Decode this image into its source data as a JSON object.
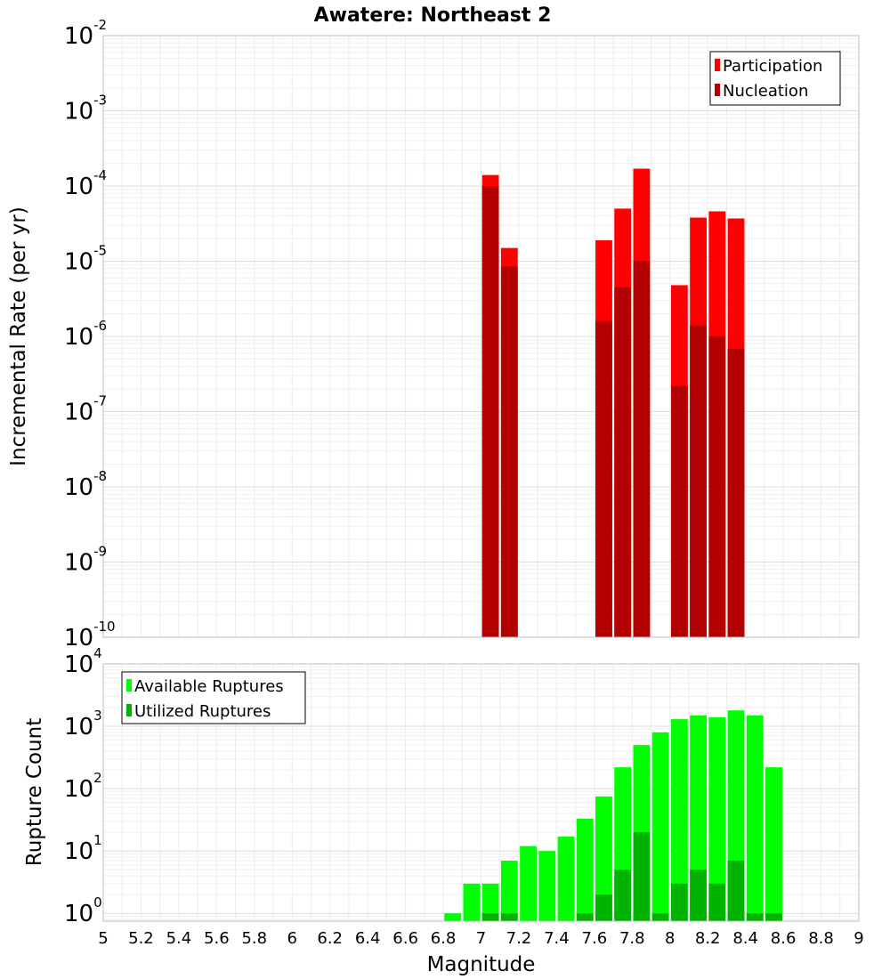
{
  "chart_data": [
    {
      "type": "bar",
      "title": "Awatere: Northeast 2",
      "xlabel": "",
      "ylabel": "Incremental Rate (per yr)",
      "yscale": "log",
      "xlim": [
        5,
        9
      ],
      "ylim": [
        1e-10,
        0.01
      ],
      "y_ticks": [
        {
          "base": "10",
          "exp": "-10"
        },
        {
          "base": "10",
          "exp": "-9"
        },
        {
          "base": "10",
          "exp": "-8"
        },
        {
          "base": "10",
          "exp": "-7"
        },
        {
          "base": "10",
          "exp": "-6"
        },
        {
          "base": "10",
          "exp": "-5"
        },
        {
          "base": "10",
          "exp": "-4"
        },
        {
          "base": "10",
          "exp": "-3"
        },
        {
          "base": "10",
          "exp": "-2"
        }
      ],
      "grid": true,
      "legend_position": "top-right",
      "bar_width": 0.1,
      "x": [
        7.05,
        7.15,
        7.65,
        7.75,
        7.85,
        8.05,
        8.15,
        8.25,
        8.35
      ],
      "series": [
        {
          "name": "Participation",
          "color": "#ff0000",
          "values": [
            0.00014,
            1.5e-05,
            1.9e-05,
            5e-05,
            0.00017,
            4.8e-06,
            3.8e-05,
            4.6e-05,
            3.7e-05
          ]
        },
        {
          "name": "Nucleation",
          "color": "#b30000",
          "values": [
            0.0001,
            8.5e-06,
            1.6e-06,
            4.5e-06,
            1e-05,
            2.2e-07,
            1.4e-06,
            1e-06,
            6.8e-07
          ]
        }
      ]
    },
    {
      "type": "bar",
      "title": "",
      "xlabel": "Magnitude",
      "ylabel": "Rupture Count",
      "yscale": "log",
      "xlim": [
        5,
        9
      ],
      "ylim": [
        0.75,
        10000
      ],
      "y_ticks": [
        {
          "base": "10",
          "exp": "0"
        },
        {
          "base": "10",
          "exp": "1"
        },
        {
          "base": "10",
          "exp": "2"
        },
        {
          "base": "10",
          "exp": "3"
        },
        {
          "base": "10",
          "exp": "4"
        }
      ],
      "x_tick_labels": [
        "5",
        "5.2",
        "5.4",
        "5.6",
        "5.8",
        "6",
        "6.2",
        "6.4",
        "6.6",
        "6.8",
        "7",
        "7.2",
        "7.4",
        "7.6",
        "7.8",
        "8",
        "8.2",
        "8.4",
        "8.6",
        "8.8",
        "9"
      ],
      "grid": true,
      "legend_position": "top-left",
      "bar_width": 0.1,
      "x": [
        6.85,
        6.95,
        7.05,
        7.15,
        7.25,
        7.35,
        7.45,
        7.55,
        7.65,
        7.75,
        7.85,
        7.95,
        8.05,
        8.15,
        8.25,
        8.35,
        8.45,
        8.55
      ],
      "series": [
        {
          "name": "Available Ruptures",
          "color": "#00ff00",
          "values": [
            1,
            3,
            3,
            7,
            12,
            10,
            17,
            33,
            75,
            220,
            500,
            800,
            1300,
            1500,
            1400,
            1800,
            1500,
            220
          ]
        },
        {
          "name": "Utilized Ruptures",
          "color": "#00b300",
          "values": [
            0,
            0,
            1,
            1,
            0,
            0,
            0,
            1,
            2,
            5,
            20,
            1,
            3,
            5,
            3,
            7,
            1,
            1
          ]
        }
      ]
    }
  ]
}
